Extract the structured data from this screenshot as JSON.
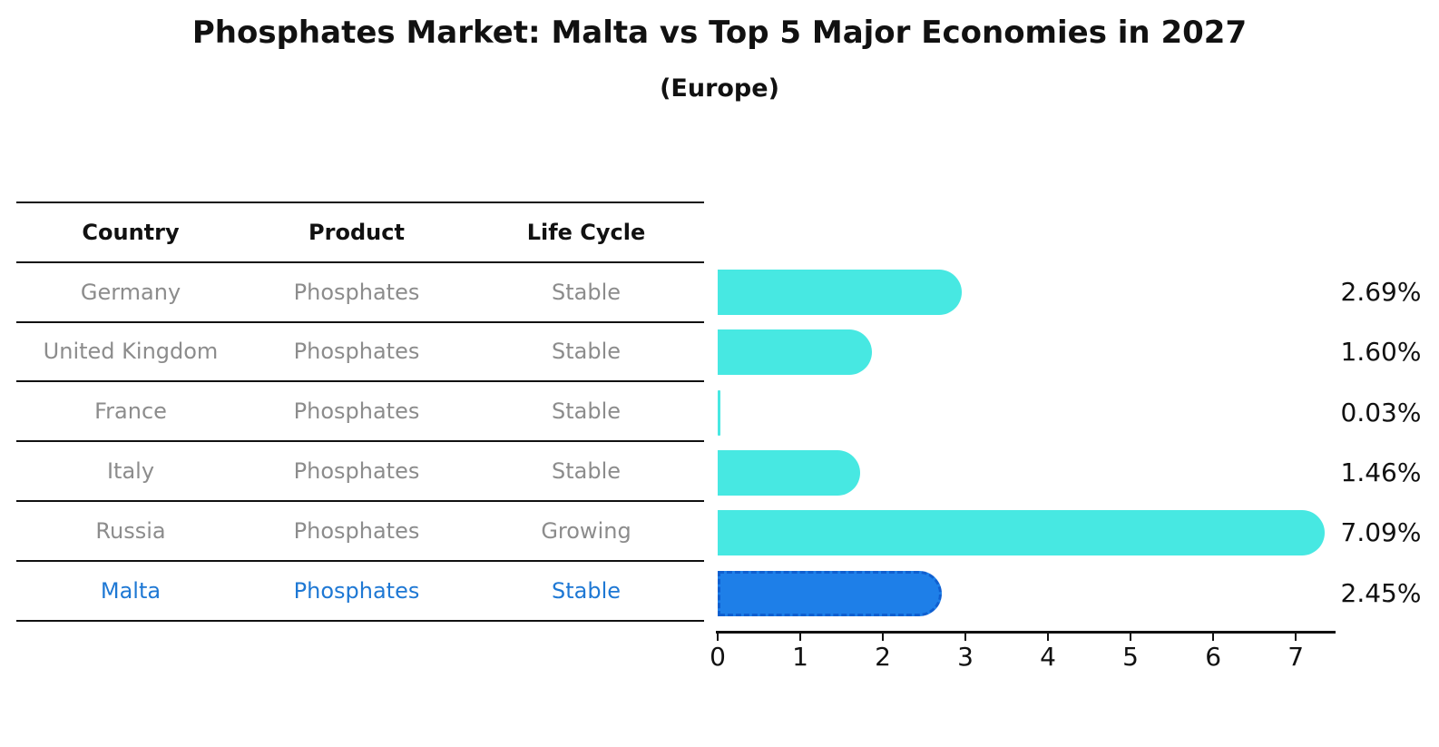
{
  "title": "Phosphates Market: Malta vs Top 5 Major Economies in 2027",
  "subtitle": "(Europe)",
  "colors": {
    "ink": "#111111",
    "row_text": "#8c8c8c",
    "highlight_text": "#1e78d4"
  },
  "table": {
    "headers": {
      "country": "Country",
      "product": "Product",
      "life_cycle": "Life Cycle"
    },
    "rows": [
      {
        "country": "Germany",
        "product": "Phosphates",
        "life_cycle": "Stable",
        "highlight": false
      },
      {
        "country": "United Kingdom",
        "product": "Phosphates",
        "life_cycle": "Stable",
        "highlight": false
      },
      {
        "country": "France",
        "product": "Phosphates",
        "life_cycle": "Stable",
        "highlight": false
      },
      {
        "country": "Italy",
        "product": "Phosphates",
        "life_cycle": "Stable",
        "highlight": false
      },
      {
        "country": "Russia",
        "product": "Phosphates",
        "life_cycle": "Growing",
        "highlight": false
      },
      {
        "country": "Malta",
        "product": "Phosphates",
        "life_cycle": "Stable",
        "highlight": true
      }
    ]
  },
  "chart_data": {
    "type": "bar",
    "orientation": "horizontal",
    "title": "Phosphates Market: Malta vs Top 5 Major Economies in 2027",
    "subtitle": "(Europe)",
    "categories": [
      "Germany",
      "United Kingdom",
      "France",
      "Italy",
      "Russia",
      "Malta"
    ],
    "values": [
      2.69,
      1.6,
      0.03,
      1.46,
      7.09,
      2.45
    ],
    "value_labels": [
      "2.69%",
      "1.60%",
      "0.03%",
      "1.46%",
      "7.09%",
      "2.45%"
    ],
    "x_ticks": [
      "0",
      "1",
      "2",
      "3",
      "4",
      "5",
      "6",
      "7"
    ],
    "xlim": [
      0,
      7.46
    ],
    "grid": false,
    "legend": "none",
    "highlight_index": 5,
    "colors": {
      "bar": "#47e8e2",
      "highlight_bar": "#1e7fe8",
      "highlight_border": "#0f5fd0"
    }
  }
}
